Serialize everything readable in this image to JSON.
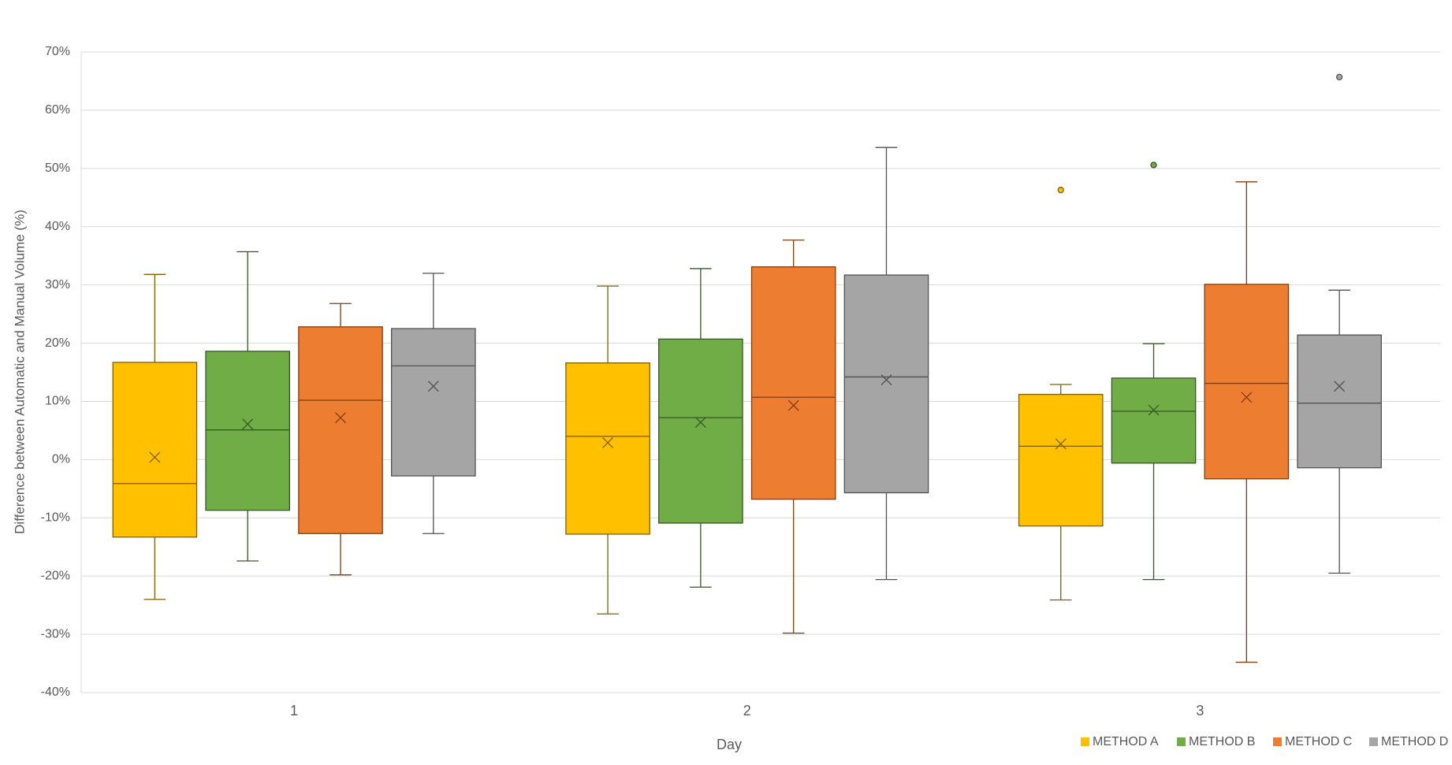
{
  "chart_data": {
    "type": "box",
    "x_label": "Day",
    "y_label": "Difference between Automatic and Manual Volume (%)",
    "categories": [
      "1",
      "2",
      "3"
    ],
    "ylim": [
      -40,
      70
    ],
    "yticks": [
      {
        "value": -40,
        "label": "-40%"
      },
      {
        "value": -30,
        "label": "-30%"
      },
      {
        "value": -20,
        "label": "-20%"
      },
      {
        "value": -10,
        "label": "-10%"
      },
      {
        "value": 0,
        "label": "0%"
      },
      {
        "value": 10,
        "label": "10%"
      },
      {
        "value": 20,
        "label": "20%"
      },
      {
        "value": 30,
        "label": "30%"
      },
      {
        "value": 40,
        "label": "40%"
      },
      {
        "value": 50,
        "label": "50%"
      },
      {
        "value": 60,
        "label": "60%"
      },
      {
        "value": 70,
        "label": "70%"
      }
    ],
    "grid": true,
    "legend": "bottom-right",
    "series": [
      {
        "name": "METHOD A",
        "color": "#FFC000",
        "edge_color": "#806000",
        "whisker_low": [
          -24.0,
          -26.5,
          -24.1
        ],
        "q1": [
          -13.3,
          -12.8,
          -11.4
        ],
        "median": [
          -4.1,
          4.0,
          2.3
        ],
        "q3": [
          16.7,
          16.6,
          11.2
        ],
        "whisker_high": [
          31.8,
          29.8,
          12.9
        ],
        "mean": [
          0.4,
          2.9,
          2.7
        ],
        "outliers": [
          [],
          [],
          [
            46.3
          ]
        ]
      },
      {
        "name": "METHOD B",
        "color": "#70AD47",
        "edge_color": "#375623",
        "whisker_low": [
          -17.4,
          -21.9,
          -20.6
        ],
        "q1": [
          -8.7,
          -10.9,
          -0.6
        ],
        "median": [
          5.1,
          7.2,
          8.3
        ],
        "q3": [
          18.6,
          20.7,
          14.0
        ],
        "whisker_high": [
          35.7,
          32.8,
          19.9
        ],
        "mean": [
          6.1,
          6.4,
          8.5
        ],
        "outliers": [
          [],
          [],
          [
            50.6
          ]
        ]
      },
      {
        "name": "METHOD C",
        "color": "#ED7D31",
        "edge_color": "#843C0C",
        "whisker_low": [
          -19.8,
          -29.8,
          -34.8
        ],
        "q1": [
          -12.7,
          -6.8,
          -3.3
        ],
        "median": [
          10.2,
          10.7,
          13.1
        ],
        "q3": [
          22.8,
          33.1,
          30.1
        ],
        "whisker_high": [
          26.8,
          37.7,
          47.7
        ],
        "mean": [
          7.2,
          9.3,
          10.7
        ],
        "outliers": [
          [],
          [],
          []
        ]
      },
      {
        "name": "METHOD D",
        "color": "#A5A5A5",
        "edge_color": "#525252",
        "whisker_low": [
          -12.7,
          -20.6,
          -19.5
        ],
        "q1": [
          -2.8,
          -5.7,
          -1.4
        ],
        "median": [
          16.1,
          14.2,
          9.7
        ],
        "q3": [
          22.5,
          31.7,
          21.4
        ],
        "whisker_high": [
          32.0,
          53.6,
          29.1
        ],
        "mean": [
          12.6,
          13.7,
          12.6
        ],
        "outliers": [
          [],
          [],
          [
            65.7
          ]
        ]
      }
    ]
  }
}
